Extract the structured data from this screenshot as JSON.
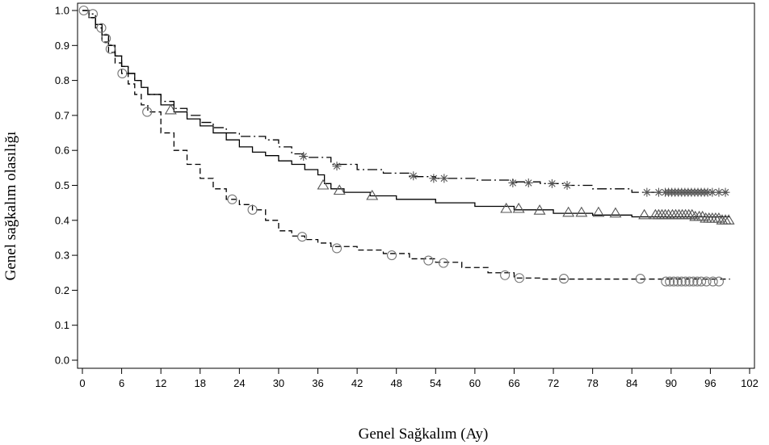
{
  "chart_data": {
    "type": "line",
    "subtype": "kaplan-meier step curves with censor markers",
    "title": "",
    "xlabel": "Genel Sağkalım (Ay)",
    "ylabel": "Genel sağkalım olasılığı",
    "xlim": [
      0,
      102
    ],
    "ylim": [
      0,
      1.0
    ],
    "xticks": [
      "0",
      "6",
      "12",
      "18",
      "24",
      "30",
      "36",
      "42",
      "48",
      "54",
      "60",
      "66",
      "72",
      "78",
      "84",
      "90",
      "96",
      "102"
    ],
    "yticks": [
      "0.0",
      "0.1",
      "0.2",
      "0.3",
      "0.4",
      "0.5",
      "0.6",
      "0.7",
      "0.8",
      "0.9",
      "1.0"
    ],
    "grid": false,
    "legend": "none",
    "series": [
      {
        "line_style": "solid",
        "marker": "triangle",
        "color": "#000000",
        "points": [
          [
            0,
            1.0
          ],
          [
            1,
            0.98
          ],
          [
            2,
            0.96
          ],
          [
            3,
            0.93
          ],
          [
            4,
            0.9
          ],
          [
            5,
            0.87
          ],
          [
            6,
            0.84
          ],
          [
            7,
            0.82
          ],
          [
            8,
            0.8
          ],
          [
            9,
            0.78
          ],
          [
            10,
            0.76
          ],
          [
            12,
            0.73
          ],
          [
            14,
            0.71
          ],
          [
            16,
            0.69
          ],
          [
            18,
            0.67
          ],
          [
            20,
            0.65
          ],
          [
            22,
            0.63
          ],
          [
            24,
            0.61
          ],
          [
            26,
            0.595
          ],
          [
            28,
            0.585
          ],
          [
            30,
            0.57
          ],
          [
            32,
            0.56
          ],
          [
            34,
            0.545
          ],
          [
            36,
            0.53
          ],
          [
            37,
            0.505
          ],
          [
            38,
            0.49
          ],
          [
            40,
            0.48
          ],
          [
            44,
            0.47
          ],
          [
            48,
            0.46
          ],
          [
            54,
            0.45
          ],
          [
            60,
            0.44
          ],
          [
            66,
            0.43
          ],
          [
            72,
            0.42
          ],
          [
            78,
            0.415
          ],
          [
            84,
            0.41
          ],
          [
            90,
            0.41
          ],
          [
            99,
            0.41
          ]
        ],
        "censored": [
          [
            13.5,
            0.715
          ],
          [
            36.8,
            0.5
          ],
          [
            39.3,
            0.485
          ],
          [
            44.3,
            0.47
          ],
          [
            64.8,
            0.433
          ],
          [
            66.7,
            0.433
          ],
          [
            69.9,
            0.428
          ],
          [
            74.3,
            0.422
          ],
          [
            76.3,
            0.422
          ],
          [
            78.9,
            0.422
          ],
          [
            81.5,
            0.42
          ],
          [
            85.9,
            0.415
          ],
          [
            87.6,
            0.415
          ],
          [
            88.1,
            0.415
          ],
          [
            88.6,
            0.415
          ],
          [
            89.1,
            0.415
          ],
          [
            89.6,
            0.415
          ],
          [
            90.2,
            0.415
          ],
          [
            90.7,
            0.415
          ],
          [
            91.2,
            0.415
          ],
          [
            91.7,
            0.415
          ],
          [
            92.2,
            0.415
          ],
          [
            92.7,
            0.415
          ],
          [
            93.2,
            0.415
          ],
          [
            93.7,
            0.41
          ],
          [
            94.3,
            0.41
          ],
          [
            94.8,
            0.41
          ],
          [
            95.3,
            0.405
          ],
          [
            95.8,
            0.405
          ],
          [
            96.3,
            0.405
          ],
          [
            96.8,
            0.405
          ],
          [
            97.3,
            0.405
          ],
          [
            97.8,
            0.4
          ],
          [
            98.3,
            0.4
          ],
          [
            98.8,
            0.4
          ]
        ]
      },
      {
        "line_style": "dash-dot",
        "marker": "asterisk",
        "color": "#000000",
        "points": [
          [
            0,
            1.0
          ],
          [
            1,
            0.99
          ],
          [
            2,
            0.96
          ],
          [
            3,
            0.93
          ],
          [
            4,
            0.9
          ],
          [
            5,
            0.87
          ],
          [
            6,
            0.84
          ],
          [
            7,
            0.82
          ],
          [
            8,
            0.8
          ],
          [
            9,
            0.78
          ],
          [
            10,
            0.76
          ],
          [
            12,
            0.74
          ],
          [
            14,
            0.72
          ],
          [
            16,
            0.7
          ],
          [
            18,
            0.68
          ],
          [
            20,
            0.665
          ],
          [
            22,
            0.65
          ],
          [
            24,
            0.64
          ],
          [
            28,
            0.63
          ],
          [
            30,
            0.61
          ],
          [
            32,
            0.59
          ],
          [
            34,
            0.58
          ],
          [
            38,
            0.56
          ],
          [
            42,
            0.545
          ],
          [
            46,
            0.535
          ],
          [
            50,
            0.525
          ],
          [
            54,
            0.52
          ],
          [
            60,
            0.515
          ],
          [
            66,
            0.51
          ],
          [
            70,
            0.505
          ],
          [
            74,
            0.5
          ],
          [
            78,
            0.49
          ],
          [
            84,
            0.48
          ],
          [
            99,
            0.48
          ]
        ],
        "censored": [
          [
            33.8,
            0.583
          ],
          [
            38.9,
            0.555
          ],
          [
            50.6,
            0.527
          ],
          [
            53.7,
            0.52
          ],
          [
            55.3,
            0.52
          ],
          [
            65.8,
            0.507
          ],
          [
            68.2,
            0.507
          ],
          [
            71.8,
            0.505
          ],
          [
            74.1,
            0.5
          ],
          [
            86.3,
            0.48
          ],
          [
            88.1,
            0.48
          ],
          [
            89.1,
            0.48
          ],
          [
            89.6,
            0.48
          ],
          [
            90.1,
            0.48
          ],
          [
            90.6,
            0.48
          ],
          [
            91.1,
            0.48
          ],
          [
            91.6,
            0.48
          ],
          [
            92.1,
            0.48
          ],
          [
            92.6,
            0.48
          ],
          [
            93.1,
            0.48
          ],
          [
            93.6,
            0.48
          ],
          [
            94.1,
            0.48
          ],
          [
            94.6,
            0.48
          ],
          [
            95.1,
            0.48
          ],
          [
            95.6,
            0.48
          ],
          [
            96.3,
            0.48
          ],
          [
            97.3,
            0.48
          ],
          [
            98.3,
            0.48
          ]
        ]
      },
      {
        "line_style": "dashed",
        "marker": "circle",
        "color": "#000000",
        "points": [
          [
            0,
            1.0
          ],
          [
            1,
            0.98
          ],
          [
            2,
            0.95
          ],
          [
            3,
            0.91
          ],
          [
            4,
            0.88
          ],
          [
            5,
            0.85
          ],
          [
            6,
            0.82
          ],
          [
            7,
            0.79
          ],
          [
            8,
            0.76
          ],
          [
            9,
            0.73
          ],
          [
            10,
            0.71
          ],
          [
            12,
            0.65
          ],
          [
            14,
            0.6
          ],
          [
            16,
            0.56
          ],
          [
            18,
            0.52
          ],
          [
            20,
            0.49
          ],
          [
            22,
            0.46
          ],
          [
            24,
            0.445
          ],
          [
            26,
            0.43
          ],
          [
            28,
            0.4
          ],
          [
            30,
            0.37
          ],
          [
            32,
            0.355
          ],
          [
            34,
            0.345
          ],
          [
            36,
            0.335
          ],
          [
            38,
            0.325
          ],
          [
            42,
            0.315
          ],
          [
            46,
            0.305
          ],
          [
            50,
            0.29
          ],
          [
            54,
            0.28
          ],
          [
            58,
            0.265
          ],
          [
            62,
            0.25
          ],
          [
            66,
            0.235
          ],
          [
            70,
            0.232
          ],
          [
            99,
            0.232
          ]
        ],
        "censored": [
          [
            0.2,
            1.0
          ],
          [
            1.6,
            0.99
          ],
          [
            2.9,
            0.95
          ],
          [
            3.6,
            0.92
          ],
          [
            4.3,
            0.89
          ],
          [
            6.1,
            0.82
          ],
          [
            9.9,
            0.71
          ],
          [
            22.9,
            0.46
          ],
          [
            26.0,
            0.43
          ],
          [
            33.6,
            0.353
          ],
          [
            38.9,
            0.32
          ],
          [
            47.3,
            0.3
          ],
          [
            52.9,
            0.285
          ],
          [
            55.2,
            0.278
          ],
          [
            64.6,
            0.243
          ],
          [
            66.8,
            0.235
          ],
          [
            73.6,
            0.233
          ],
          [
            85.3,
            0.233
          ],
          [
            89.2,
            0.225
          ],
          [
            89.8,
            0.225
          ],
          [
            90.4,
            0.225
          ],
          [
            91.0,
            0.225
          ],
          [
            91.6,
            0.225
          ],
          [
            92.2,
            0.225
          ],
          [
            92.8,
            0.225
          ],
          [
            93.4,
            0.225
          ],
          [
            94.0,
            0.225
          ],
          [
            94.6,
            0.225
          ],
          [
            95.4,
            0.225
          ],
          [
            96.4,
            0.225
          ],
          [
            97.3,
            0.225
          ]
        ]
      }
    ]
  }
}
